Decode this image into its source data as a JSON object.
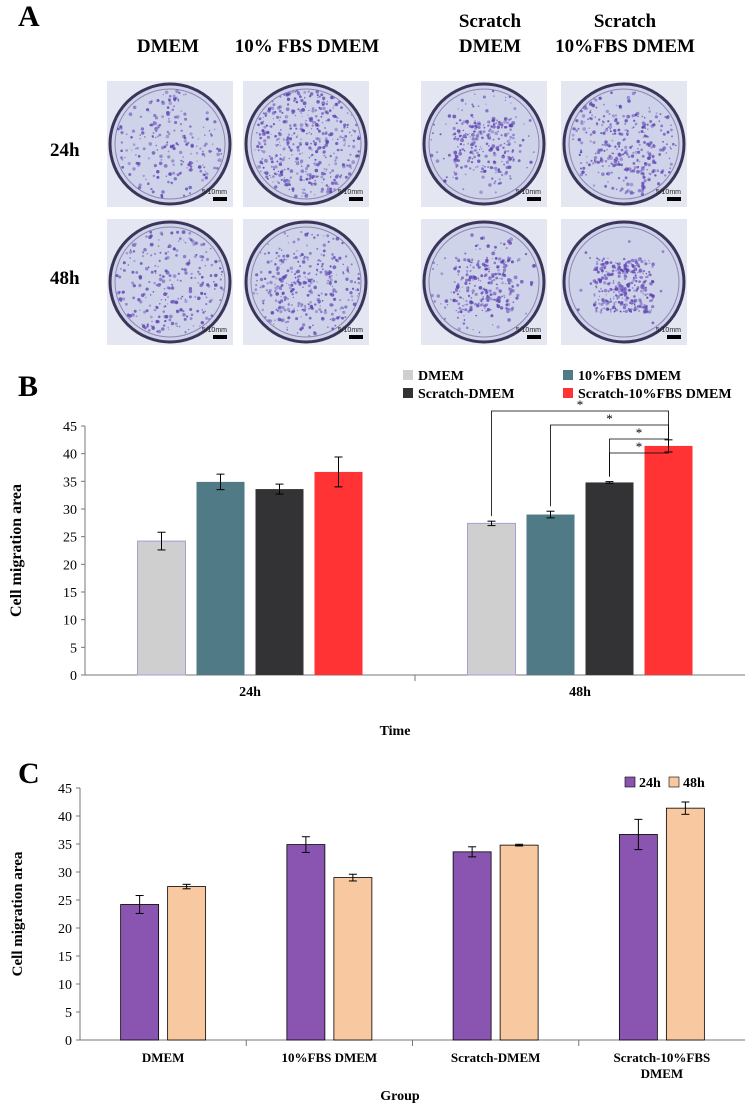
{
  "figure": {
    "panel_a": {
      "letter": "A",
      "columns": [
        {
          "line1": "DMEM",
          "line2": ""
        },
        {
          "line1": "10% FBS DMEM",
          "line2": ""
        },
        {
          "line1": "Scratch",
          "line2": "DMEM"
        },
        {
          "line1": "Scratch",
          "line2": "10%FBS DMEM"
        }
      ],
      "rows": [
        "24h",
        "48h"
      ],
      "scale_label": "5/10mm"
    },
    "panel_b_letter": "B",
    "panel_c_letter": "C"
  },
  "colors": {
    "dmem": "#cfcfcf",
    "fbs": "#4f7a86",
    "scratch": "#333335",
    "scratch_fbs": "#ff3333",
    "c24": "#8a55b0",
    "c48": "#f8c9a0",
    "stain": "#5a3fb0"
  },
  "chart_data": [
    {
      "type": "bar",
      "panel": "B",
      "title": "",
      "xlabel": "Time",
      "ylabel": "Cell migration area",
      "ylim": [
        0,
        45
      ],
      "yticks": [
        "0",
        "5",
        "10",
        "15",
        "20",
        "25",
        "30",
        "35",
        "40",
        "45"
      ],
      "categories": [
        "24h",
        "48h"
      ],
      "series": [
        {
          "name": "DMEM",
          "values": [
            24.2,
            27.4
          ],
          "errors": [
            1.6,
            0.4
          ]
        },
        {
          "name": "10%FBS DMEM",
          "values": [
            34.9,
            29.0
          ],
          "errors": [
            1.4,
            0.6
          ]
        },
        {
          "name": "Scratch-DMEM",
          "values": [
            33.6,
            34.8
          ],
          "errors": [
            0.9,
            0.15
          ]
        },
        {
          "name": "Scratch-10%FBS DMEM",
          "values": [
            36.7,
            41.4
          ],
          "errors": [
            2.7,
            1.1
          ]
        }
      ],
      "significance": [
        {
          "label": "*",
          "from": "DMEM",
          "to": "Scratch-10%FBS DMEM",
          "category": "48h"
        },
        {
          "label": "*",
          "from": "10%FBS DMEM",
          "to": "Scratch-10%FBS DMEM",
          "category": "48h"
        },
        {
          "label": "*",
          "from": "Scratch-DMEM",
          "to": "Scratch-10%FBS DMEM",
          "category": "48h"
        },
        {
          "label": "*",
          "from": "Scratch-DMEM",
          "to": "Scratch-10%FBS DMEM",
          "category": "48h"
        }
      ],
      "legend_position": "top-right"
    },
    {
      "type": "bar",
      "panel": "C",
      "title": "",
      "xlabel": "Group",
      "ylabel": "Cell migration area",
      "ylim": [
        0,
        45
      ],
      "yticks": [
        "0",
        "5",
        "10",
        "15",
        "20",
        "25",
        "30",
        "35",
        "40",
        "45"
      ],
      "categories": [
        "DMEM",
        "10%FBS DMEM",
        "Scratch-DMEM",
        "Scratch-10%FBS DMEM"
      ],
      "category_lines": [
        [
          "DMEM"
        ],
        [
          "10%FBS DMEM"
        ],
        [
          "Scratch-DMEM"
        ],
        [
          "Scratch-10%FBS",
          "DMEM"
        ]
      ],
      "series": [
        {
          "name": "24h",
          "values": [
            24.2,
            34.9,
            33.6,
            36.7
          ],
          "errors": [
            1.6,
            1.4,
            0.9,
            2.7
          ]
        },
        {
          "name": "48h",
          "values": [
            27.4,
            29.0,
            34.8,
            41.4
          ],
          "errors": [
            0.4,
            0.6,
            0.15,
            1.1
          ]
        }
      ],
      "legend_position": "top-right"
    }
  ]
}
